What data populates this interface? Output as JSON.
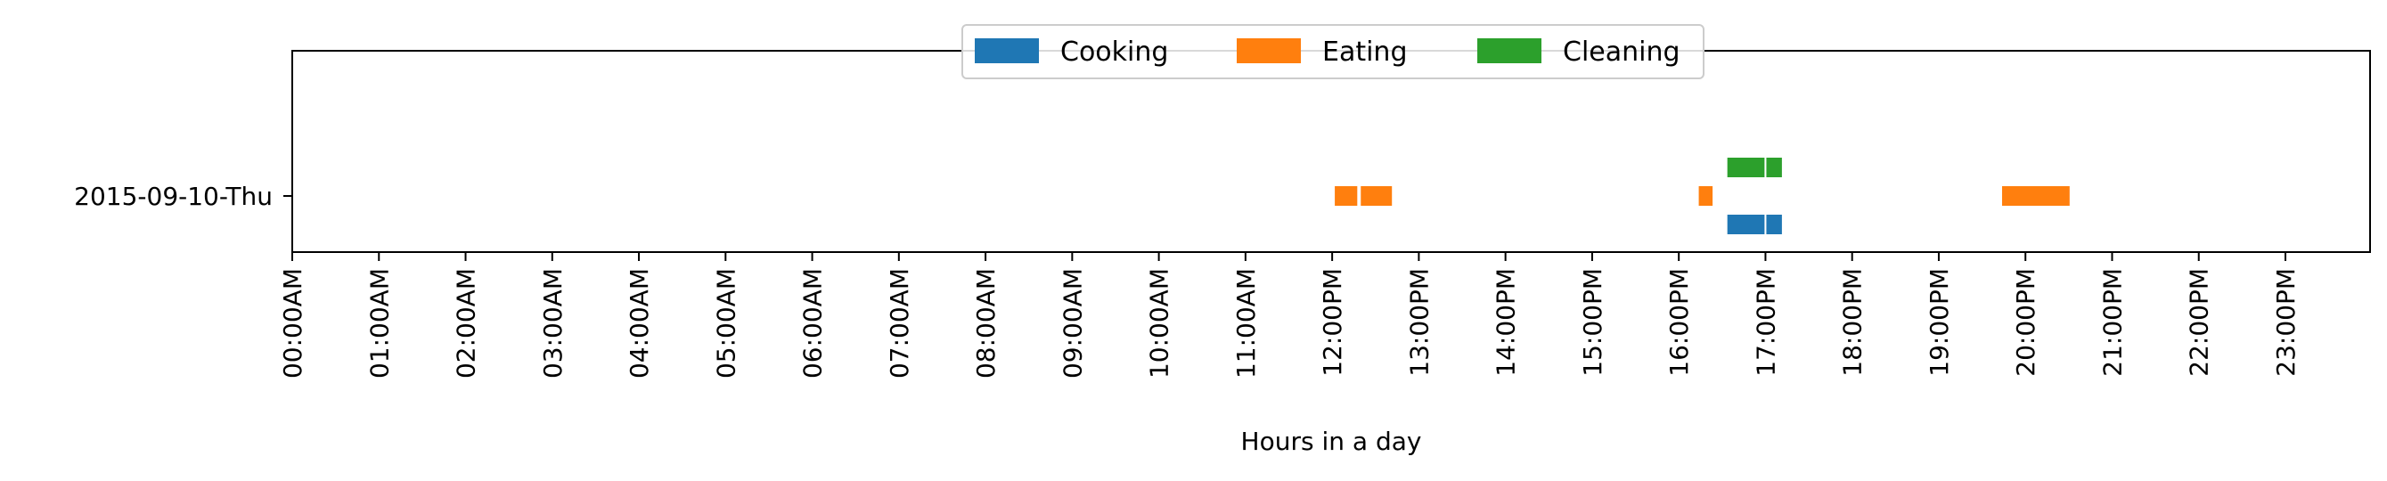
{
  "chart_data": {
    "type": "broken-barh",
    "xlabel": "Hours in a day",
    "ylabel": "",
    "xlim": [
      0,
      24
    ],
    "grid": false,
    "legend": {
      "placement": "top-center",
      "orientation": "horizontal"
    },
    "rows": [
      "2015-09-10-Thu"
    ],
    "x_tick_labels": [
      "00:00AM",
      "01:00AM",
      "02:00AM",
      "03:00AM",
      "04:00AM",
      "05:00AM",
      "06:00AM",
      "07:00AM",
      "08:00AM",
      "09:00AM",
      "10:00AM",
      "11:00AM",
      "12:00PM",
      "13:00PM",
      "14:00PM",
      "15:00PM",
      "16:00PM",
      "17:00PM",
      "18:00PM",
      "19:00PM",
      "20:00PM",
      "21:00PM",
      "22:00PM",
      "23:00PM"
    ],
    "series": [
      {
        "name": "Cooking",
        "color": "#1f77b4",
        "lane": -1,
        "intervals": [
          [
            16.55,
            17.0
          ],
          [
            17.0,
            17.2
          ]
        ]
      },
      {
        "name": "Eating",
        "color": "#ff7f0e",
        "lane": 0,
        "intervals": [
          [
            12.02,
            12.3
          ],
          [
            12.32,
            12.7
          ],
          [
            16.22,
            16.4
          ],
          [
            19.72,
            20.52
          ]
        ]
      },
      {
        "name": "Cleaning",
        "color": "#2ca02c",
        "lane": 1,
        "intervals": [
          [
            16.55,
            17.0
          ],
          [
            17.0,
            17.2
          ]
        ]
      }
    ]
  }
}
